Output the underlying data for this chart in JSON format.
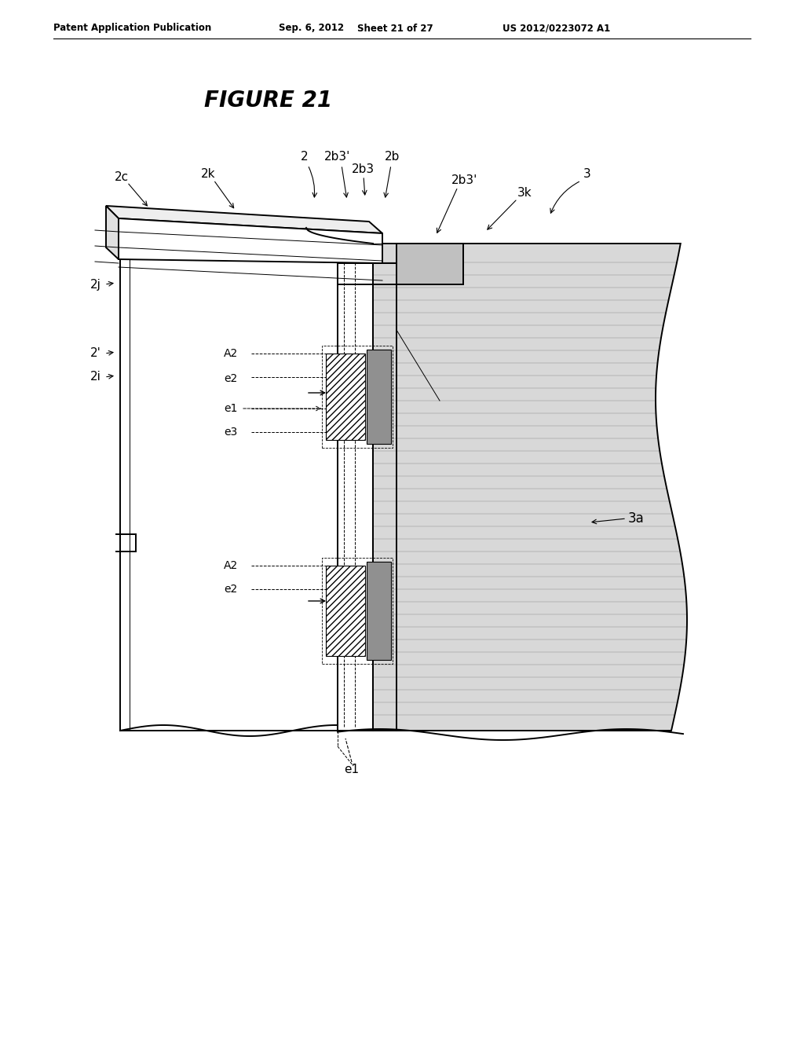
{
  "title": "FIGURE 21",
  "header_left": "Patent Application Publication",
  "header_mid": "Sep. 6, 2012   Sheet 21 of 27",
  "header_right": "US 2012/0223072 A1",
  "bg_color": "#ffffff",
  "line_color": "#000000",
  "gray_light": "#d8d8d8",
  "gray_mid": "#b0b0b0",
  "gray_dark": "#888888",
  "lw_main": 1.4,
  "lw_thin": 0.7,
  "lw_thick": 2.0
}
